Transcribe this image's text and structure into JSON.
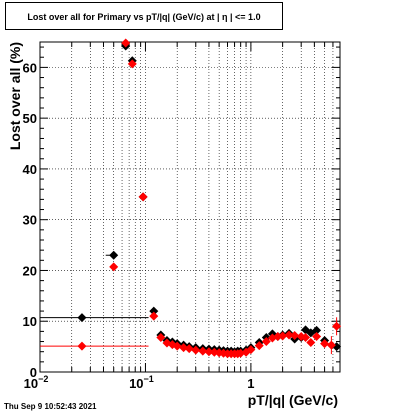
{
  "chart_data": {
    "type": "scatter",
    "title": "Lost over all for Primary vs pT/|q| (GeV/c) at |  η  | <= 1.0",
    "xlabel": "pT/|q| (GeV/c)",
    "ylabel": "Lost over all (%)",
    "xscale": "log",
    "xlim": [
      0.01,
      7
    ],
    "ylim": [
      0,
      65
    ],
    "grid": true,
    "x_tick_labels": [
      "10^-2",
      "10^-1",
      "1"
    ],
    "y_tick_labels": [
      "0",
      "10",
      "20",
      "30",
      "40",
      "50",
      "60"
    ],
    "series": [
      {
        "color": "#000000",
        "marker": "diamond",
        "points": [
          {
            "x": 0.025,
            "y": 10.7,
            "xerr_lo": 0.015,
            "xerr_hi": 0.082
          },
          {
            "x": 0.05,
            "y": 23.0,
            "xerr_lo": 0.008
          },
          {
            "x": 0.065,
            "y": 64.2
          },
          {
            "x": 0.075,
            "y": 61.3
          },
          {
            "x": 0.095,
            "y": 34.5
          },
          {
            "x": 0.12,
            "y": 12.0
          },
          {
            "x": 0.14,
            "y": 7.3
          },
          {
            "x": 0.16,
            "y": 6.2
          },
          {
            "x": 0.18,
            "y": 5.9
          },
          {
            "x": 0.2,
            "y": 5.6
          },
          {
            "x": 0.23,
            "y": 5.3
          },
          {
            "x": 0.26,
            "y": 5.0
          },
          {
            "x": 0.3,
            "y": 4.8
          },
          {
            "x": 0.35,
            "y": 4.6
          },
          {
            "x": 0.4,
            "y": 4.5
          },
          {
            "x": 0.45,
            "y": 4.4
          },
          {
            "x": 0.5,
            "y": 4.3
          },
          {
            "x": 0.55,
            "y": 4.2
          },
          {
            "x": 0.6,
            "y": 4.1
          },
          {
            "x": 0.65,
            "y": 4.1
          },
          {
            "x": 0.7,
            "y": 4.0
          },
          {
            "x": 0.75,
            "y": 4.1
          },
          {
            "x": 0.8,
            "y": 4.1
          },
          {
            "x": 0.9,
            "y": 4.3
          },
          {
            "x": 1.0,
            "y": 4.8
          },
          {
            "x": 1.2,
            "y": 5.8
          },
          {
            "x": 1.4,
            "y": 6.8
          },
          {
            "x": 1.6,
            "y": 7.5
          },
          {
            "x": 1.8,
            "y": 7.0
          },
          {
            "x": 2.0,
            "y": 7.3
          },
          {
            "x": 2.3,
            "y": 7.6
          },
          {
            "x": 2.6,
            "y": 6.5
          },
          {
            "x": 3.0,
            "y": 6.8
          },
          {
            "x": 3.3,
            "y": 8.3
          },
          {
            "x": 3.7,
            "y": 7.7
          },
          {
            "x": 4.2,
            "y": 8.2
          },
          {
            "x": 5.0,
            "y": 6.2
          },
          {
            "x": 6.5,
            "y": 5.0
          }
        ]
      },
      {
        "color": "#ff0000",
        "marker": "diamond",
        "points": [
          {
            "x": 0.025,
            "y": 5.1,
            "xerr_lo": 0.015,
            "xerr_hi": 0.082
          },
          {
            "x": 0.05,
            "y": 20.7
          },
          {
            "x": 0.065,
            "y": 64.8
          },
          {
            "x": 0.075,
            "y": 60.7
          },
          {
            "x": 0.095,
            "y": 34.5
          },
          {
            "x": 0.12,
            "y": 11.0
          },
          {
            "x": 0.14,
            "y": 6.8
          },
          {
            "x": 0.16,
            "y": 5.7
          },
          {
            "x": 0.18,
            "y": 5.4
          },
          {
            "x": 0.2,
            "y": 5.1
          },
          {
            "x": 0.23,
            "y": 4.8
          },
          {
            "x": 0.26,
            "y": 4.6
          },
          {
            "x": 0.3,
            "y": 4.3
          },
          {
            "x": 0.35,
            "y": 4.1
          },
          {
            "x": 0.4,
            "y": 4.0
          },
          {
            "x": 0.45,
            "y": 3.9
          },
          {
            "x": 0.5,
            "y": 3.8
          },
          {
            "x": 0.55,
            "y": 3.7
          },
          {
            "x": 0.6,
            "y": 3.6
          },
          {
            "x": 0.65,
            "y": 3.6
          },
          {
            "x": 0.7,
            "y": 3.6
          },
          {
            "x": 0.75,
            "y": 3.6
          },
          {
            "x": 0.8,
            "y": 3.7
          },
          {
            "x": 0.9,
            "y": 3.9
          },
          {
            "x": 1.0,
            "y": 4.4
          },
          {
            "x": 1.2,
            "y": 5.2
          },
          {
            "x": 1.4,
            "y": 6.0
          },
          {
            "x": 1.6,
            "y": 6.7
          },
          {
            "x": 1.8,
            "y": 7.0
          },
          {
            "x": 2.0,
            "y": 7.1
          },
          {
            "x": 2.3,
            "y": 7.3
          },
          {
            "x": 2.6,
            "y": 7.2
          },
          {
            "x": 3.0,
            "y": 7.0
          },
          {
            "x": 3.3,
            "y": 6.8
          },
          {
            "x": 3.7,
            "y": 5.8
          },
          {
            "x": 4.2,
            "y": 7.0
          },
          {
            "x": 5.0,
            "y": 5.6
          },
          {
            "x": 5.8,
            "y": 5.3
          },
          {
            "x": 6.5,
            "y": 9.0
          }
        ]
      }
    ]
  },
  "footer": {
    "timestamp": "Thu Sep  9 10:52:43 2021"
  }
}
